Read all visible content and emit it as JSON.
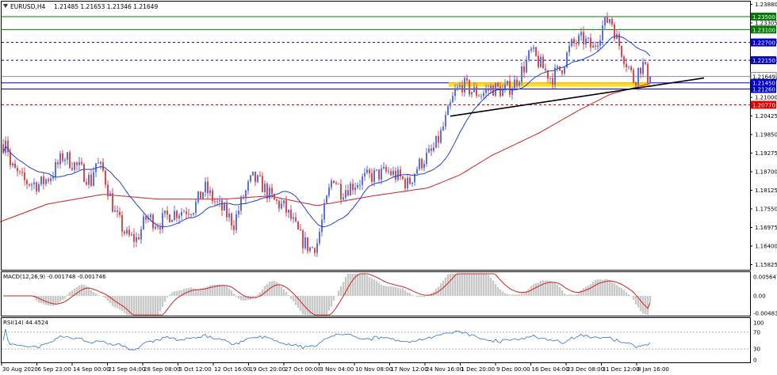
{
  "header": {
    "symbol_label": "EURUSD,H4",
    "ohlc": "1.21485 1.21653 1.21346 1.21649"
  },
  "indicators": {
    "macd_label": "MACD(12,26,9) -0.001748 -0.001746",
    "rsi_label": "RSI(14) 44.4524"
  },
  "colors": {
    "bull": "#5a6fe0",
    "bear": "#e0474c",
    "ma_fast": "#1f3fd6",
    "ma_slow": "#d21f1f",
    "macd_hist": "#c8c8c8",
    "macd_signal": "#d21f1f",
    "rsi_line": "#2f6fd6",
    "zone_fill": "#ffd700",
    "green_level": "#007a00",
    "blue_level": "#0000c8",
    "red_level": "#e00000",
    "trendline": "#000000"
  },
  "chart_data": {
    "type": "candlestick",
    "symbol": "EURUSD",
    "timeframe": "H4",
    "price_axis_ticks": [
      "1.23880",
      "1.23305",
      "1.22725",
      "1.22150",
      "1.21575",
      "1.21000",
      "1.20425",
      "1.19850",
      "1.19275",
      "1.18700",
      "1.18125",
      "1.17550",
      "1.16975",
      "1.16400",
      "1.15825"
    ],
    "price_range": [
      1.1569,
      1.2394
    ],
    "time_axis_labels": [
      "30 Aug 2020",
      "6 Sep 23:00",
      "14 Sep 00:00",
      "21 Sep 04:00",
      "28 Sep 08:00",
      "5 Oct 12:00",
      "12 Oct 16:00",
      "19 Oct 20:00",
      "27 Oct 00:00",
      "3 Nov 04:00",
      "10 Nov 08:00",
      "17 Nov 12:00",
      "24 Nov 16:00",
      "1 Dec 20:00",
      "9 Dec 00:00",
      "16 Dec 04:00",
      "23 Dec 08:00",
      "31 Dec 12:00",
      "8 Jan 16:00"
    ],
    "price_path": [
      [
        0,
        1.192
      ],
      [
        8,
        1.199
      ],
      [
        12,
        1.189
      ],
      [
        30,
        1.184
      ],
      [
        50,
        1.183
      ],
      [
        65,
        1.186
      ],
      [
        80,
        1.192
      ],
      [
        100,
        1.188
      ],
      [
        115,
        1.184
      ],
      [
        120,
        1.19
      ],
      [
        130,
        1.187
      ],
      [
        145,
        1.174
      ],
      [
        160,
        1.167
      ],
      [
        172,
        1.166
      ],
      [
        185,
        1.173
      ],
      [
        200,
        1.171
      ],
      [
        215,
        1.174
      ],
      [
        230,
        1.175
      ],
      [
        245,
        1.176
      ],
      [
        258,
        1.182
      ],
      [
        270,
        1.178
      ],
      [
        285,
        1.174
      ],
      [
        295,
        1.171
      ],
      [
        305,
        1.178
      ],
      [
        318,
        1.185
      ],
      [
        330,
        1.183
      ],
      [
        345,
        1.178
      ],
      [
        358,
        1.176
      ],
      [
        368,
        1.172
      ],
      [
        380,
        1.166
      ],
      [
        392,
        1.163
      ],
      [
        400,
        1.165
      ],
      [
        410,
        1.176
      ],
      [
        420,
        1.186
      ],
      [
        430,
        1.181
      ],
      [
        445,
        1.183
      ],
      [
        460,
        1.185
      ],
      [
        475,
        1.186
      ],
      [
        490,
        1.187
      ],
      [
        505,
        1.185
      ],
      [
        515,
        1.183
      ],
      [
        525,
        1.188
      ],
      [
        535,
        1.191
      ],
      [
        545,
        1.193
      ],
      [
        555,
        1.198
      ],
      [
        565,
        1.205
      ],
      [
        573,
        1.211
      ],
      [
        583,
        1.214
      ],
      [
        595,
        1.212
      ],
      [
        608,
        1.211
      ],
      [
        620,
        1.213
      ],
      [
        635,
        1.212
      ],
      [
        648,
        1.214
      ],
      [
        660,
        1.219
      ],
      [
        670,
        1.224
      ],
      [
        682,
        1.22
      ],
      [
        695,
        1.216
      ],
      [
        708,
        1.219
      ],
      [
        720,
        1.226
      ],
      [
        735,
        1.228
      ],
      [
        748,
        1.225
      ],
      [
        760,
        1.232
      ],
      [
        770,
        1.235
      ],
      [
        778,
        1.228
      ],
      [
        790,
        1.221
      ],
      [
        800,
        1.215
      ],
      [
        806,
        1.219
      ],
      [
        811,
        1.22
      ],
      [
        818,
        1.2155
      ],
      [
        822,
        1.2164
      ]
    ],
    "ma_slow_path": [
      [
        0,
        1.1715
      ],
      [
        60,
        1.177
      ],
      [
        130,
        1.18
      ],
      [
        200,
        1.1785
      ],
      [
        280,
        1.1785
      ],
      [
        340,
        1.1795
      ],
      [
        400,
        1.1765
      ],
      [
        470,
        1.1795
      ],
      [
        540,
        1.182
      ],
      [
        580,
        1.186
      ],
      [
        620,
        1.192
      ],
      [
        680,
        1.199
      ],
      [
        730,
        1.206
      ],
      [
        770,
        1.211
      ],
      [
        800,
        1.213
      ],
      [
        822,
        1.2145
      ]
    ],
    "horizontal_levels": [
      {
        "label": "1.23500",
        "value": 1.235,
        "color": "green",
        "style": "solid"
      },
      {
        "label": "1.23100",
        "value": 1.231,
        "color": "green",
        "style": "solid"
      },
      {
        "label": "1.22700",
        "value": 1.227,
        "color": "blue",
        "style": "dashed"
      },
      {
        "label": "1.22150",
        "value": 1.2215,
        "color": "blue",
        "style": "dashed"
      },
      {
        "label": "1.21649",
        "value": 1.21649,
        "color": "grey",
        "style": "solid"
      },
      {
        "label": "1.21450",
        "value": 1.2145,
        "color": "blue",
        "style": "solid"
      },
      {
        "label": "1.21260",
        "value": 1.2126,
        "color": "blue",
        "style": "solid"
      },
      {
        "label": "1.20770",
        "value": 1.2077,
        "color": "red",
        "style": "dashed"
      }
    ],
    "support_zone": {
      "from": 1.2133,
      "to": 1.2147,
      "x_start_label": "1 Dec 20:00"
    },
    "trendline": {
      "from": [
        568,
        1.2042
      ],
      "to": [
        888,
        1.216
      ]
    },
    "macd": {
      "label": "MACD(12,26,9)",
      "main": -0.001748,
      "signal": -0.001746,
      "axis_ticks": [
        "0.005647",
        "0.00",
        "-0.004832"
      ],
      "range": [
        -0.00483,
        0.00565
      ]
    },
    "rsi": {
      "label": "RSI(14)",
      "value": 44.4524,
      "axis_ticks": [
        "100",
        "70",
        "30",
        "0"
      ],
      "range": [
        0,
        100
      ]
    }
  }
}
